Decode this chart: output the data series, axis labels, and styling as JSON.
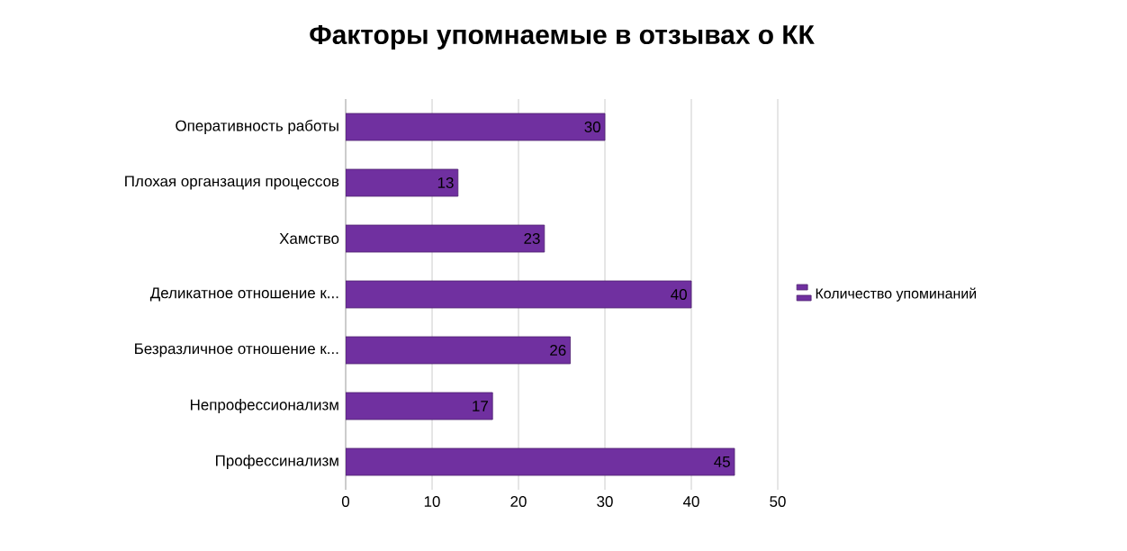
{
  "chart_data": {
    "type": "bar",
    "orientation": "horizontal",
    "title": "Факторы упомнаемые в отзывах о КК",
    "categories": [
      "Оперативность работы",
      "Плохая органзация процессов",
      "Хамство",
      "Деликатное отношение к...",
      "Безразличное отношение к...",
      "Непрофессионализм",
      "Профессинализм"
    ],
    "series": [
      {
        "name": "Количество упоминаний",
        "color": "#7030a0",
        "values": [
          30,
          13,
          23,
          40,
          26,
          17,
          45
        ]
      }
    ],
    "xlim": [
      0,
      50
    ],
    "xticks": [
      0,
      10,
      20,
      30,
      40,
      50
    ],
    "grid": "x",
    "legend": "right",
    "data_labels": true
  }
}
